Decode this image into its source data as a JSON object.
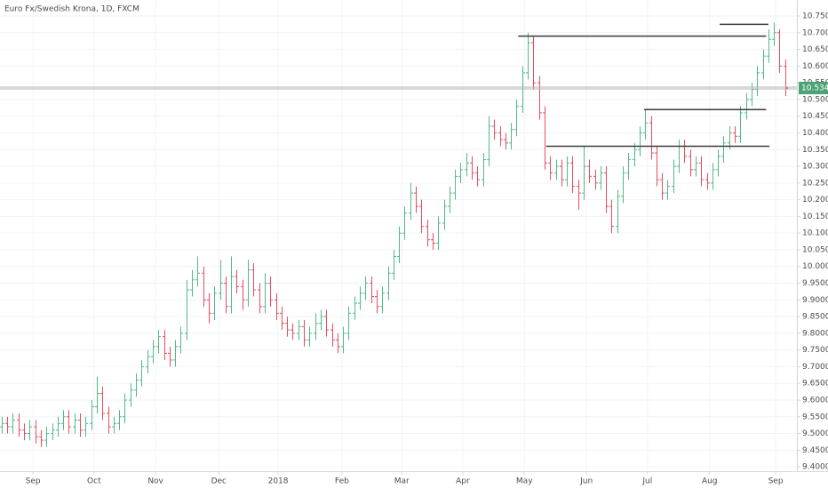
{
  "chart_data": {
    "type": "ohlc",
    "title": "Euro Fx/Swedish Krona, 1D, FXCM",
    "up_color": "#53b987",
    "down_color": "#eb4d5c",
    "grid": true,
    "xlim": [
      -0.3,
      142.1
    ],
    "xticks": [
      {
        "value": 5.6,
        "label": "Sep"
      },
      {
        "value": 16.5,
        "label": "Oct"
      },
      {
        "value": 27.5,
        "label": "Nov"
      },
      {
        "value": 38.8,
        "label": "Dec"
      },
      {
        "value": 49.4,
        "label": "2018"
      },
      {
        "value": 60.8,
        "label": "Feb"
      },
      {
        "value": 71.5,
        "label": "Mar"
      },
      {
        "value": 82.4,
        "label": "Apr"
      },
      {
        "value": 93.4,
        "label": "May"
      },
      {
        "value": 104.5,
        "label": "Jun"
      },
      {
        "value": 115.4,
        "label": "Jul"
      },
      {
        "value": 126.5,
        "label": "Aug"
      },
      {
        "value": 138.3,
        "label": "Sep"
      }
    ],
    "ylim": [
      9.387,
      10.798
    ],
    "yticks": [
      {
        "value": 9.4,
        "label": "9.40000"
      },
      {
        "value": 9.45,
        "label": "9.45000"
      },
      {
        "value": 9.5,
        "label": "9.50000"
      },
      {
        "value": 9.55,
        "label": "9.55000"
      },
      {
        "value": 9.6,
        "label": "9.60000"
      },
      {
        "value": 9.65,
        "label": "9.65000"
      },
      {
        "value": 9.7,
        "label": "9.70000"
      },
      {
        "value": 9.75,
        "label": "9.75000"
      },
      {
        "value": 9.8,
        "label": "9.80000"
      },
      {
        "value": 9.85,
        "label": "9.85000"
      },
      {
        "value": 9.9,
        "label": "9.90000"
      },
      {
        "value": 9.95,
        "label": "9.95000"
      },
      {
        "value": 10.0,
        "label": "10.00000"
      },
      {
        "value": 10.05,
        "label": "10.05000"
      },
      {
        "value": 10.1,
        "label": "10.10000"
      },
      {
        "value": 10.15,
        "label": "10.15000"
      },
      {
        "value": 10.2,
        "label": "10.20000"
      },
      {
        "value": 10.25,
        "label": "10.25000"
      },
      {
        "value": 10.3,
        "label": "10.30000"
      },
      {
        "value": 10.35,
        "label": "10.35000"
      },
      {
        "value": 10.4,
        "label": "10.40000"
      },
      {
        "value": 10.45,
        "label": "10.45000"
      },
      {
        "value": 10.5,
        "label": "10.50000"
      },
      {
        "value": 10.55,
        "label": "10.55000"
      },
      {
        "value": 10.6,
        "label": "10.60000"
      },
      {
        "value": 10.65,
        "label": "10.65000"
      },
      {
        "value": 10.7,
        "label": "10.70000"
      },
      {
        "value": 10.75,
        "label": "10.75000"
      }
    ],
    "open": [
      9.52,
      9.53,
      9.52,
      9.54,
      9.51,
      9.5,
      9.52,
      9.49,
      9.48,
      9.5,
      9.51,
      9.53,
      9.55,
      9.52,
      9.54,
      9.51,
      9.53,
      9.58,
      9.62,
      9.56,
      9.52,
      9.53,
      9.55,
      9.6,
      9.63,
      9.66,
      9.7,
      9.73,
      9.76,
      9.79,
      9.74,
      9.72,
      9.76,
      9.8,
      9.93,
      9.96,
      9.98,
      9.9,
      9.86,
      9.92,
      9.95,
      9.88,
      9.97,
      9.94,
      9.9,
      9.99,
      9.93,
      9.88,
      9.95,
      9.9,
      9.86,
      9.83,
      9.81,
      9.8,
      9.82,
      9.78,
      9.8,
      9.83,
      9.85,
      9.81,
      9.78,
      9.76,
      9.8,
      9.86,
      9.89,
      9.92,
      9.95,
      9.91,
      9.88,
      9.92,
      9.98,
      10.03,
      10.1,
      10.16,
      10.22,
      10.18,
      10.12,
      10.08,
      10.07,
      10.13,
      10.18,
      10.22,
      10.27,
      10.29,
      10.31,
      10.28,
      10.26,
      10.32,
      10.42,
      10.4,
      10.38,
      10.37,
      10.41,
      10.48,
      10.58,
      10.67,
      10.55,
      10.46,
      10.31,
      10.28,
      10.3,
      10.26,
      10.31,
      10.24,
      10.22,
      10.3,
      10.27,
      10.25,
      10.28,
      10.18,
      10.12,
      10.21,
      10.28,
      10.32,
      10.35,
      10.4,
      10.43,
      10.34,
      10.26,
      10.22,
      10.24,
      10.3,
      10.36,
      10.33,
      10.29,
      10.31,
      10.26,
      10.25,
      10.29,
      10.33,
      10.37,
      10.4,
      10.39,
      10.46,
      10.5,
      10.53,
      10.58,
      10.63,
      10.68,
      10.7,
      10.6
    ],
    "high": [
      9.55,
      9.55,
      9.56,
      9.56,
      9.53,
      9.54,
      9.54,
      9.51,
      9.52,
      9.53,
      9.55,
      9.57,
      9.57,
      9.56,
      9.56,
      9.55,
      9.6,
      9.67,
      9.64,
      9.58,
      9.55,
      9.57,
      9.62,
      9.65,
      9.68,
      9.72,
      9.75,
      9.78,
      9.81,
      9.81,
      9.76,
      9.78,
      9.82,
      9.96,
      9.99,
      10.03,
      10.0,
      9.92,
      9.94,
      10.02,
      9.97,
      10.03,
      9.99,
      9.96,
      10.02,
      10.01,
      9.95,
      9.98,
      9.97,
      9.92,
      9.88,
      9.85,
      9.83,
      9.84,
      9.84,
      9.82,
      9.86,
      9.87,
      9.87,
      9.83,
      9.8,
      9.82,
      9.88,
      9.91,
      9.94,
      9.97,
      9.97,
      9.93,
      9.94,
      10.0,
      10.05,
      10.12,
      10.18,
      10.25,
      10.24,
      10.2,
      10.14,
      10.1,
      10.15,
      10.2,
      10.24,
      10.29,
      10.31,
      10.34,
      10.33,
      10.3,
      10.34,
      10.45,
      10.44,
      10.42,
      10.4,
      10.43,
      10.5,
      10.6,
      10.7,
      10.69,
      10.57,
      10.48,
      10.33,
      10.32,
      10.32,
      10.33,
      10.33,
      10.26,
      10.36,
      10.32,
      10.29,
      10.3,
      10.3,
      10.2,
      10.23,
      10.3,
      10.34,
      10.37,
      10.42,
      10.47,
      10.45,
      10.36,
      10.28,
      10.26,
      10.32,
      10.38,
      10.38,
      10.35,
      10.33,
      10.33,
      10.28,
      10.31,
      10.35,
      10.39,
      10.42,
      10.42,
      10.48,
      10.52,
      10.55,
      10.6,
      10.65,
      10.71,
      10.73,
      10.71,
      10.62
    ],
    "low": [
      9.5,
      9.5,
      9.5,
      9.49,
      9.48,
      9.48,
      9.47,
      9.46,
      9.46,
      9.48,
      9.49,
      9.51,
      9.5,
      9.5,
      9.49,
      9.49,
      9.51,
      9.56,
      9.54,
      9.5,
      9.5,
      9.51,
      9.53,
      9.58,
      9.61,
      9.64,
      9.68,
      9.71,
      9.74,
      9.72,
      9.7,
      9.7,
      9.74,
      9.78,
      9.91,
      9.94,
      9.88,
      9.83,
      9.84,
      9.9,
      9.86,
      9.86,
      9.92,
      9.87,
      9.88,
      9.91,
      9.86,
      9.86,
      9.88,
      9.84,
      9.81,
      9.79,
      9.78,
      9.78,
      9.76,
      9.76,
      9.78,
      9.81,
      9.79,
      9.76,
      9.74,
      9.74,
      9.78,
      9.84,
      9.87,
      9.9,
      9.89,
      9.86,
      9.86,
      9.9,
      9.96,
      10.01,
      10.08,
      10.14,
      10.16,
      10.1,
      10.06,
      10.05,
      10.05,
      10.11,
      10.16,
      10.2,
      10.25,
      10.27,
      10.26,
      10.24,
      10.24,
      10.3,
      10.38,
      10.36,
      10.35,
      10.35,
      10.39,
      10.46,
      10.56,
      10.53,
      10.44,
      10.29,
      10.26,
      10.26,
      10.24,
      10.24,
      10.22,
      10.17,
      10.2,
      10.25,
      10.23,
      10.23,
      10.16,
      10.1,
      10.1,
      10.19,
      10.26,
      10.3,
      10.33,
      10.38,
      10.32,
      10.24,
      10.2,
      10.2,
      10.22,
      10.28,
      10.31,
      10.27,
      10.27,
      10.24,
      10.23,
      10.23,
      10.27,
      10.31,
      10.35,
      10.37,
      10.37,
      10.44,
      10.48,
      10.51,
      10.56,
      10.61,
      10.66,
      10.58,
      10.51
    ],
    "close": [
      9.53,
      9.52,
      9.54,
      9.51,
      9.5,
      9.52,
      9.49,
      9.48,
      9.5,
      9.51,
      9.53,
      9.55,
      9.52,
      9.54,
      9.51,
      9.53,
      9.58,
      9.62,
      9.56,
      9.52,
      9.53,
      9.55,
      9.6,
      9.63,
      9.66,
      9.7,
      9.73,
      9.76,
      9.79,
      9.74,
      9.72,
      9.76,
      9.8,
      9.93,
      9.96,
      9.98,
      9.9,
      9.86,
      9.92,
      9.95,
      9.88,
      9.97,
      9.94,
      9.9,
      9.99,
      9.93,
      9.88,
      9.95,
      9.9,
      9.86,
      9.83,
      9.81,
      9.8,
      9.82,
      9.78,
      9.8,
      9.83,
      9.85,
      9.81,
      9.78,
      9.76,
      9.8,
      9.86,
      9.89,
      9.92,
      9.95,
      9.91,
      9.88,
      9.92,
      9.98,
      10.03,
      10.1,
      10.16,
      10.22,
      10.18,
      10.12,
      10.08,
      10.07,
      10.13,
      10.18,
      10.22,
      10.27,
      10.29,
      10.31,
      10.28,
      10.26,
      10.32,
      10.42,
      10.4,
      10.38,
      10.37,
      10.41,
      10.48,
      10.58,
      10.67,
      10.55,
      10.46,
      10.31,
      10.28,
      10.3,
      10.26,
      10.31,
      10.24,
      10.22,
      10.3,
      10.27,
      10.25,
      10.28,
      10.18,
      10.12,
      10.21,
      10.28,
      10.32,
      10.35,
      10.4,
      10.43,
      10.34,
      10.26,
      10.22,
      10.24,
      10.3,
      10.36,
      10.33,
      10.29,
      10.31,
      10.26,
      10.25,
      10.29,
      10.33,
      10.37,
      10.4,
      10.39,
      10.46,
      10.5,
      10.53,
      10.58,
      10.63,
      10.68,
      10.7,
      10.6,
      10.5344
    ],
    "last_price": 10.5344,
    "last_price_label": "10.53440",
    "last_price_color": "#4ca374",
    "levels_color": "#3a3a3a",
    "levels": [
      {
        "y": 10.725,
        "x": [
          128.3,
          137.0
        ]
      },
      {
        "y": 10.69,
        "x": [
          92.3,
          136.6
        ]
      },
      {
        "y": 10.47,
        "x": [
          114.8,
          136.6
        ]
      },
      {
        "y": 10.36,
        "x": [
          97.3,
          137.2
        ]
      }
    ]
  }
}
